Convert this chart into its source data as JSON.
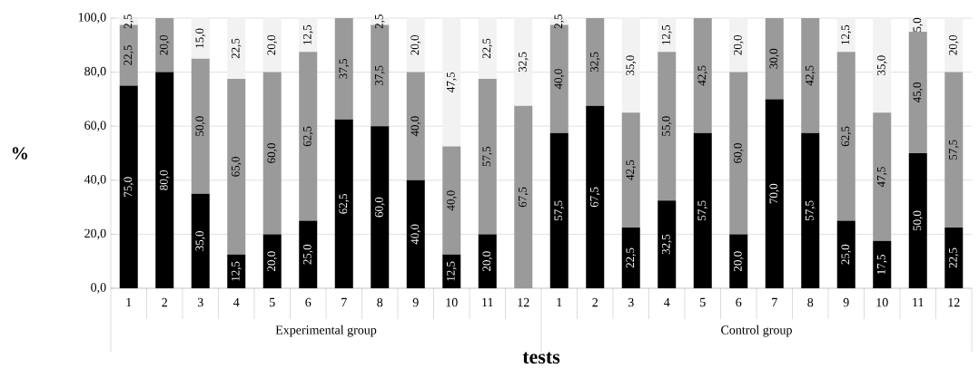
{
  "chart_data": {
    "type": "bar",
    "stacked": true,
    "xlabel": "tests",
    "ylabel": "%",
    "categories": [
      "1",
      "2",
      "3",
      "4",
      "5",
      "6",
      "7",
      "8",
      "9",
      "10",
      "11",
      "12",
      "1",
      "2",
      "3",
      "4",
      "5",
      "6",
      "7",
      "8",
      "9",
      "10",
      "11",
      "12"
    ],
    "annotations": [
      "Experimental group",
      "Control group"
    ],
    "ylim": [
      0,
      100
    ],
    "yticks": [
      {
        "value": 0,
        "label": "0,0"
      },
      {
        "value": 20,
        "label": "20,0"
      },
      {
        "value": 40,
        "label": "40,0"
      },
      {
        "value": 60,
        "label": "60,0"
      },
      {
        "value": 80,
        "label": "80,0"
      },
      {
        "value": 100,
        "label": "100,0"
      }
    ],
    "grid": "y",
    "series": [
      {
        "color": "#000000",
        "values": [
          75,
          80,
          35,
          12.5,
          20,
          25,
          62.5,
          60,
          40,
          12.5,
          20,
          null,
          57.5,
          67.5,
          22.5,
          32.5,
          57.5,
          20,
          70,
          57.5,
          25,
          17.5,
          50,
          22.5
        ],
        "value_labels": [
          "75,0",
          "80,0",
          "35,0",
          "12,5",
          "20,0",
          "25,0",
          "62,5",
          "60,0",
          "40,0",
          "12,5",
          "20,0",
          null,
          "57,5",
          "67,5",
          "22,5",
          "32,5",
          "57,5",
          "20,0",
          "70,0",
          "57,5",
          "25,0",
          "17,5",
          "50,0",
          "22,5"
        ]
      },
      {
        "color": "#9a9a9a",
        "values": [
          22.5,
          20,
          50,
          65,
          60,
          62.5,
          37.5,
          37.5,
          40,
          40,
          57.5,
          67.5,
          40,
          32.5,
          42.5,
          55,
          42.5,
          60,
          30,
          42.5,
          62.5,
          47.5,
          45,
          57.5
        ],
        "value_labels": [
          "22,5",
          "20,0",
          "50,0",
          "65,0",
          "60,0",
          "62,5",
          "37,5",
          "37,5",
          "40,0",
          "40,0",
          "57,5",
          "67,5",
          "40,0",
          "32,5",
          "42,5",
          "55,0",
          "42,5",
          "60,0",
          "30,0",
          "42,5",
          "62,5",
          "47,5",
          "45,0",
          "57,5"
        ]
      },
      {
        "color": "#f2f2f2",
        "values": [
          2.5,
          null,
          15,
          22.5,
          20,
          12.5,
          null,
          2.5,
          20,
          47.5,
          22.5,
          32.5,
          2.5,
          null,
          35,
          12.5,
          null,
          20,
          null,
          null,
          12.5,
          35,
          5,
          20
        ],
        "value_labels": [
          "2,5",
          null,
          "15,0",
          "22,5",
          "20,0",
          "12,5",
          null,
          "2,5",
          "20,0",
          "47,5",
          "22,5",
          "32,5",
          "2,5",
          null,
          "35,0",
          "12,5",
          null,
          "20,0",
          null,
          null,
          "12,5",
          "35,0",
          "5,0",
          "20,0"
        ]
      }
    ]
  }
}
